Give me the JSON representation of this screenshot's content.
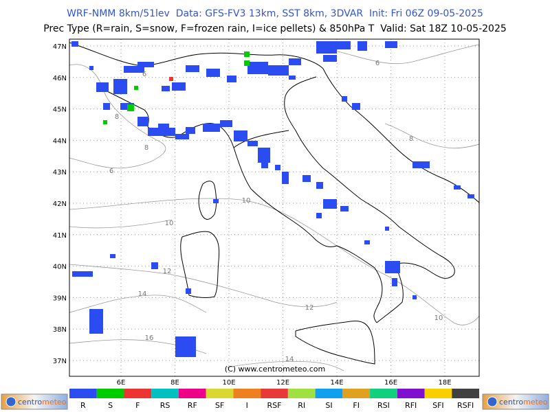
{
  "header": {
    "line1": "WRF-NMM 8km/51lev  Data: GFS-FV3 13km, SST 8km, 3DVAR  Init: Fri 06Z 09-05-2025",
    "line2": "Prec Type (R=rain, S=snow, F=frozen rain, I=ice pellets) & 850hPa T  Valid: Sat 18Z 10-05-2025"
  },
  "map": {
    "lat_labels": [
      "47N",
      "46N",
      "45N",
      "44N",
      "43N",
      "42N",
      "41N",
      "40N",
      "39N",
      "38N",
      "37N"
    ],
    "lon_labels": [
      "6E",
      "8E",
      "10E",
      "12E",
      "14E",
      "16E",
      "18E"
    ],
    "contour_labels": [
      "6",
      "6",
      "8",
      "8",
      "6",
      "8",
      "10",
      "10",
      "12",
      "14",
      "12",
      "10",
      "16",
      "14"
    ],
    "copyright": "(C) www.centrometeo.com"
  },
  "legend": {
    "items": [
      {
        "label": "R",
        "color": "#2a4cf0"
      },
      {
        "label": "S",
        "color": "#00cc00"
      },
      {
        "label": "F",
        "color": "#ee3333"
      },
      {
        "label": "RS",
        "color": "#00c0c0"
      },
      {
        "label": "RF",
        "color": "#ee0088"
      },
      {
        "label": "SF",
        "color": "#d8d830"
      },
      {
        "label": "I",
        "color": "#ee8020"
      },
      {
        "label": "RSF",
        "color": "#e83838"
      },
      {
        "label": "RI",
        "color": "#a0e040"
      },
      {
        "label": "SI",
        "color": "#10a0f0"
      },
      {
        "label": "FI",
        "color": "#e0a020"
      },
      {
        "label": "RSI",
        "color": "#10d080"
      },
      {
        "label": "RFI",
        "color": "#8010d0"
      },
      {
        "label": "SFI",
        "color": "#f8d000"
      },
      {
        "label": "RSFI",
        "color": "#404040"
      }
    ]
  },
  "logo": {
    "first": "centro",
    "second": "meteo"
  }
}
